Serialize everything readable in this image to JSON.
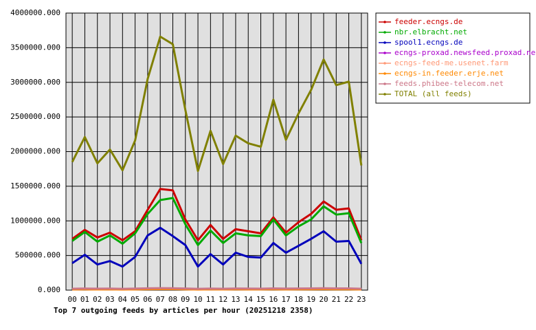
{
  "chart_data": {
    "type": "line",
    "title": "Top 7 outgoing feeds by articles per hour (20251218 2358)",
    "categories": [
      "00",
      "01",
      "02",
      "03",
      "04",
      "05",
      "06",
      "07",
      "08",
      "09",
      "10",
      "11",
      "12",
      "13",
      "14",
      "15",
      "16",
      "17",
      "18",
      "19",
      "20",
      "21",
      "22",
      "23"
    ],
    "ylim": [
      0,
      4000000
    ],
    "yticks": [
      {
        "value": 0,
        "label": "0.000"
      },
      {
        "value": 500000,
        "label": "500000.000"
      },
      {
        "value": 1000000,
        "label": "1000000.000"
      },
      {
        "value": 1500000,
        "label": "1500000.000"
      },
      {
        "value": 2000000,
        "label": "2000000.000"
      },
      {
        "value": 2500000,
        "label": "2500000.000"
      },
      {
        "value": 3000000,
        "label": "3000000.000"
      },
      {
        "value": 3500000,
        "label": "3500000.000"
      },
      {
        "value": 4000000,
        "label": "4000000.000"
      }
    ],
    "grid": true,
    "legend": "right",
    "series": [
      {
        "name": "feeder.ecngs.de",
        "color": "#cc0000",
        "values": [
          740000,
          870000,
          760000,
          830000,
          720000,
          850000,
          1160000,
          1460000,
          1440000,
          1020000,
          720000,
          940000,
          740000,
          880000,
          850000,
          820000,
          1050000,
          830000,
          980000,
          1100000,
          1280000,
          1160000,
          1180000,
          720000
        ]
      },
      {
        "name": "nbr.elbracht.net",
        "color": "#00aa00",
        "values": [
          710000,
          840000,
          700000,
          790000,
          670000,
          820000,
          1100000,
          1300000,
          1330000,
          950000,
          650000,
          860000,
          680000,
          820000,
          790000,
          780000,
          1020000,
          790000,
          920000,
          1020000,
          1210000,
          1090000,
          1110000,
          680000
        ]
      },
      {
        "name": "spool1.ecngs.de",
        "color": "#0000bb",
        "values": [
          390000,
          510000,
          370000,
          420000,
          340000,
          480000,
          790000,
          900000,
          780000,
          650000,
          340000,
          520000,
          370000,
          540000,
          480000,
          470000,
          680000,
          540000,
          640000,
          740000,
          850000,
          700000,
          710000,
          380000
        ]
      },
      {
        "name": "ecngs-proxad.newsfeed.proxad.net",
        "color": "#aa00cc",
        "values": [
          15000,
          18000,
          16000,
          17000,
          14000,
          17000,
          20000,
          22000,
          21000,
          18000,
          14000,
          17000,
          15000,
          18000,
          17000,
          16000,
          19000,
          17000,
          18000,
          19000,
          21000,
          19000,
          19000,
          15000
        ]
      },
      {
        "name": "ecngs-feed-me.usenet.farm",
        "color": "#ff9977",
        "values": [
          12000,
          14000,
          12000,
          13000,
          11000,
          13000,
          16000,
          18000,
          17000,
          14000,
          11000,
          13000,
          12000,
          14000,
          13000,
          13000,
          15000,
          13000,
          14000,
          15000,
          17000,
          15000,
          15000,
          12000
        ]
      },
      {
        "name": "ecngs-in.feeder.erje.net",
        "color": "#ff8800",
        "values": [
          10000,
          12000,
          10000,
          11000,
          9000,
          11000,
          14000,
          15000,
          15000,
          12000,
          9000,
          11000,
          10000,
          12000,
          11000,
          11000,
          13000,
          11000,
          12000,
          13000,
          14000,
          13000,
          13000,
          10000
        ]
      },
      {
        "name": "feeds.phibee-telecom.net",
        "color": "#cc7788",
        "values": [
          20000,
          23000,
          21000,
          22000,
          19000,
          22000,
          26000,
          28000,
          27000,
          23000,
          19000,
          22000,
          20000,
          23000,
          22000,
          21000,
          25000,
          22000,
          24000,
          25000,
          27000,
          25000,
          25000,
          20000
        ]
      },
      {
        "name": "TOTAL (all feeds)",
        "color": "#808000",
        "values": [
          1850000,
          2210000,
          1830000,
          2030000,
          1730000,
          2160000,
          3050000,
          3660000,
          3550000,
          2600000,
          1720000,
          2300000,
          1820000,
          2230000,
          2120000,
          2070000,
          2750000,
          2170000,
          2550000,
          2890000,
          3330000,
          2960000,
          3010000,
          1800000
        ]
      }
    ]
  }
}
